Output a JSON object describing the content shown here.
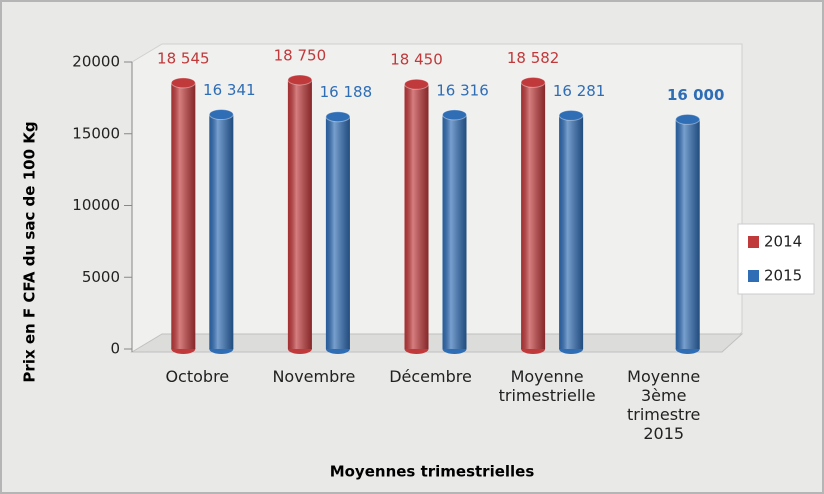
{
  "chart_data": {
    "type": "bar",
    "y_label": "Prix en F CFA du sac de 100 Kg",
    "x_label": "Moyennes trimestrielles",
    "categories": [
      "Octobre",
      "Novembre",
      "Décembre",
      "Moyenne trimestrielle",
      "Moyenne 3ème trimestre 2015"
    ],
    "series": [
      {
        "name": "2014",
        "color": "#c0393b",
        "values": [
          18545,
          18750,
          18450,
          18582,
          null
        ],
        "value_labels": [
          "18 545",
          "18 750",
          "18 450",
          "18 582",
          null
        ]
      },
      {
        "name": "2015",
        "color": "#2f6db5",
        "values": [
          16341,
          16188,
          16316,
          16281,
          16000
        ],
        "value_labels": [
          "16 341",
          "16 188",
          "16 316",
          "16 281",
          "16 000"
        ]
      }
    ],
    "ylim": [
      0,
      20000
    ],
    "yticks": [
      0,
      5000,
      10000,
      15000,
      20000
    ],
    "legend": "right"
  }
}
